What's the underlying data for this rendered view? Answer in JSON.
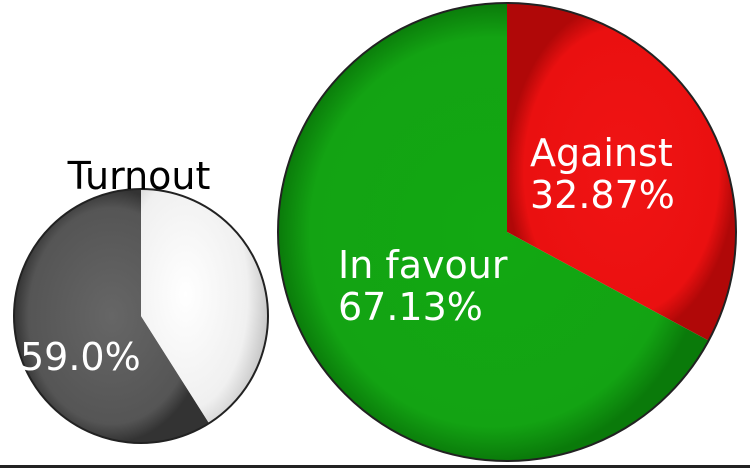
{
  "chart_data": [
    {
      "type": "pie",
      "title": "Turnout",
      "slices": [
        {
          "label": "",
          "value": 59.0,
          "value_label": "59.0%",
          "color": "#555555"
        },
        {
          "label": "",
          "value": 41.0,
          "value_label": "",
          "color": "#ececec"
        }
      ]
    },
    {
      "type": "pie",
      "title": "",
      "slices": [
        {
          "label": "Against",
          "value": 32.87,
          "value_label": "32.87%",
          "color": "#ee1111"
        },
        {
          "label": "In favour",
          "value": 67.13,
          "value_label": "67.13%",
          "color": "#12a412"
        }
      ]
    }
  ]
}
